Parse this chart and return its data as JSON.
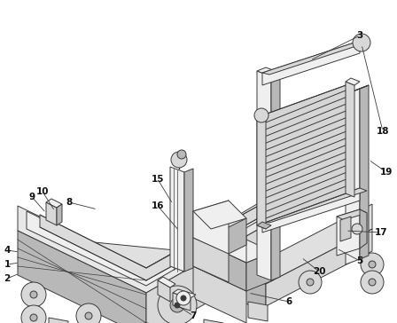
{
  "bg_color": "#ffffff",
  "lc": "#3a3a3a",
  "fl": "#efefef",
  "fc": "#d8d8d8",
  "fd": "#b8b8b8",
  "figsize": [
    4.48,
    3.64
  ],
  "dpi": 100
}
